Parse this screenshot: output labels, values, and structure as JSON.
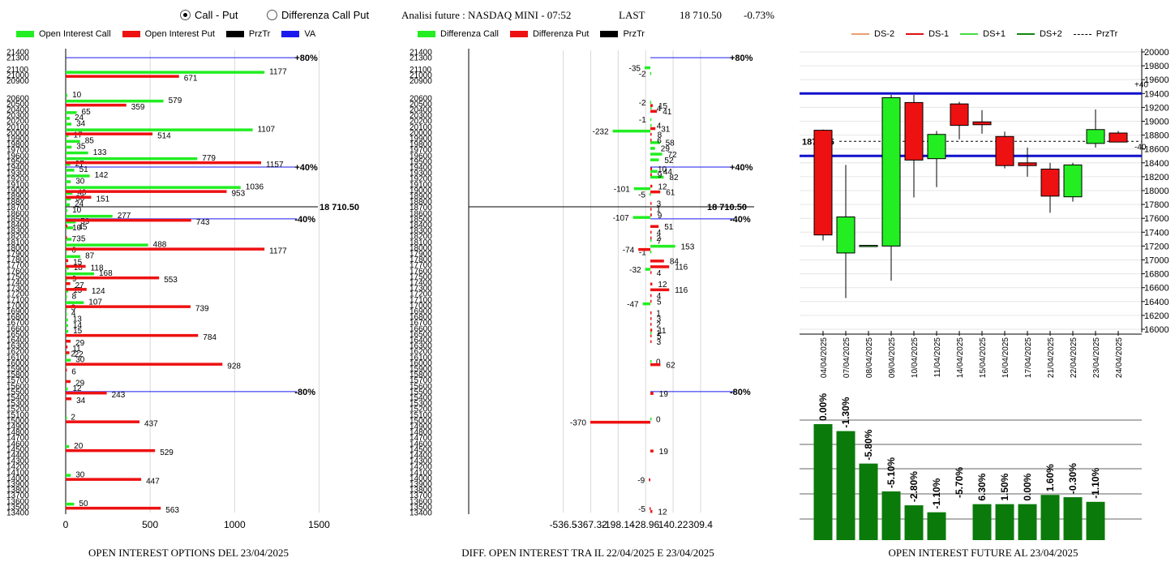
{
  "toolbar": {
    "radio_call_put": "Call - Put",
    "radio_diff": "Differenza Call Put",
    "title": "Analisi future : NASDAQ MINI - 07:52",
    "last_label": "LAST",
    "last_value": "18 710.50",
    "change": "-0.73%"
  },
  "legends": {
    "panel1": [
      {
        "label": "Open Interest Call",
        "color": "#22ee22"
      },
      {
        "label": "Open Interest Put",
        "color": "#ee1111"
      },
      {
        "label": "PrzTr",
        "color": "#000000"
      },
      {
        "label": "VA",
        "color": "#1a1aee"
      }
    ],
    "panel2": [
      {
        "label": "Differenza Call",
        "color": "#22ee22"
      },
      {
        "label": "Differenza Put",
        "color": "#ee1111"
      },
      {
        "label": "PrzTr",
        "color": "#000000"
      }
    ],
    "panel3": [
      {
        "label": "DS-2",
        "color": "#e8a070"
      },
      {
        "label": "DS-1",
        "color": "#dd1111"
      },
      {
        "label": "DS+1",
        "color": "#44dd44"
      },
      {
        "label": "DS+2",
        "color": "#118811"
      },
      {
        "label": "PrzTr",
        "color": "#000000"
      }
    ]
  },
  "captions": {
    "panel1": "OPEN INTEREST OPTIONS DEL 23/04/2025",
    "panel2": "DIFF. OPEN INTEREST TRA IL 22/04/2025 E 23/04/2025",
    "panel3": "OPEN INTEREST FUTURE AL 23/04/2025"
  },
  "chart_data": [
    {
      "type": "bar",
      "orientation": "horizontal",
      "strike_ticks": [
        21400,
        21300,
        21100,
        21000,
        20900,
        20600,
        20500,
        20400,
        20300,
        20200,
        20100,
        20000,
        19900,
        19800,
        19700,
        19600,
        19500,
        19400,
        19300,
        19200,
        19100,
        19000,
        18900,
        18800,
        18700,
        18600,
        18500,
        18400,
        18300,
        18200,
        18100,
        18000,
        17900,
        17800,
        17700,
        17600,
        17500,
        17400,
        17300,
        17200,
        17100,
        17000,
        16900,
        16800,
        16700,
        16600,
        16500,
        16400,
        16300,
        16200,
        16100,
        16000,
        15900,
        15800,
        15700,
        15600,
        15500,
        15400,
        15300,
        15200,
        15100,
        15000,
        14900,
        14800,
        14700,
        14600,
        14500,
        14400,
        14300,
        14200,
        14100,
        14000,
        13900,
        13800,
        13700,
        13600,
        13500,
        13400
      ],
      "x_ticks": [
        "0",
        "500",
        "1000",
        "1500"
      ],
      "xlim": [
        0,
        1500
      ],
      "call": [
        {
          "strike": 21000,
          "value": 1177
        },
        {
          "strike": 20600,
          "value": 10
        },
        {
          "strike": 20500,
          "value": 579
        },
        {
          "strike": 20300,
          "value": 65
        },
        {
          "strike": 20200,
          "value": 24
        },
        {
          "strike": 20100,
          "value": 34
        },
        {
          "strike": 20000,
          "value": 1107
        },
        {
          "strike": 19900,
          "value": 17
        },
        {
          "strike": 19800,
          "value": 85
        },
        {
          "strike": 19700,
          "value": 35
        },
        {
          "strike": 19600,
          "value": 133
        },
        {
          "strike": 19500,
          "value": 779
        },
        {
          "strike": 19400,
          "value": 27
        },
        {
          "strike": 19300,
          "value": 51
        },
        {
          "strike": 19200,
          "value": 142
        },
        {
          "strike": 19100,
          "value": 30
        },
        {
          "strike": 19000,
          "value": 1036
        },
        {
          "strike": 18900,
          "value": 40
        },
        {
          "strike": 18800,
          "value": 30
        },
        {
          "strike": 18700,
          "value": 24
        },
        {
          "strike": 18600,
          "value": 10
        },
        {
          "strike": 18500,
          "value": 277
        },
        {
          "strike": 18400,
          "value": 59
        },
        {
          "strike": 18300,
          "value": 45
        },
        {
          "strike": 18100,
          "value": 35
        },
        {
          "strike": 18000,
          "value": 488
        },
        {
          "strike": 17900,
          "value": 6
        },
        {
          "strike": 17800,
          "value": 87
        },
        {
          "strike": 17600,
          "value": 18
        },
        {
          "strike": 17500,
          "value": 168
        },
        {
          "strike": 17400,
          "value": 9
        },
        {
          "strike": 17200,
          "value": 15
        },
        {
          "strike": 17100,
          "value": 8
        },
        {
          "strike": 17000,
          "value": 107
        },
        {
          "strike": 16900,
          "value": 3
        },
        {
          "strike": 16800,
          "value": 4
        },
        {
          "strike": 16700,
          "value": 13
        },
        {
          "strike": 16600,
          "value": 14
        },
        {
          "strike": 16500,
          "value": 15
        },
        {
          "strike": 16100,
          "value": 2
        },
        {
          "strike": 16000,
          "value": 30
        },
        {
          "strike": 15500,
          "value": 12
        },
        {
          "strike": 15000,
          "value": 2
        },
        {
          "strike": 14500,
          "value": 20
        },
        {
          "strike": 14000,
          "value": 30
        },
        {
          "strike": 13500,
          "value": 50
        }
      ],
      "put": [
        {
          "strike": 21000,
          "value": 671
        },
        {
          "strike": 20500,
          "value": 359
        },
        {
          "strike": 20000,
          "value": 514
        },
        {
          "strike": 19500,
          "value": 1157
        },
        {
          "strike": 19000,
          "value": 953
        },
        {
          "strike": 18900,
          "value": 151
        },
        {
          "strike": 18500,
          "value": 743
        },
        {
          "strike": 18400,
          "value": 10
        },
        {
          "strike": 18200,
          "value": 7
        },
        {
          "strike": 18000,
          "value": 1177
        },
        {
          "strike": 17800,
          "value": 15
        },
        {
          "strike": 17700,
          "value": 118
        },
        {
          "strike": 17500,
          "value": 553
        },
        {
          "strike": 17400,
          "value": 27
        },
        {
          "strike": 17300,
          "value": 124
        },
        {
          "strike": 17000,
          "value": 739
        },
        {
          "strike": 16500,
          "value": 784
        },
        {
          "strike": 16400,
          "value": 29
        },
        {
          "strike": 16300,
          "value": 11
        },
        {
          "strike": 16200,
          "value": 22
        },
        {
          "strike": 16000,
          "value": 928
        },
        {
          "strike": 15900,
          "value": 6
        },
        {
          "strike": 15700,
          "value": 29
        },
        {
          "strike": 15500,
          "value": 243
        },
        {
          "strike": 15400,
          "value": 34
        },
        {
          "strike": 15000,
          "value": 437
        },
        {
          "strike": 14500,
          "value": 529
        },
        {
          "strike": 14000,
          "value": 447
        },
        {
          "strike": 13500,
          "value": 563
        }
      ],
      "levels": [
        {
          "strike": 21300,
          "label": "+80%",
          "value": 1370
        },
        {
          "strike": 19400,
          "label": "+40%",
          "value": 1370
        },
        {
          "strike": 18500,
          "label": "-40%",
          "value": 1370
        },
        {
          "strike": 15500,
          "label": "-80%",
          "value": 1370
        }
      ],
      "price_line": {
        "strike": 18710.5,
        "label": "18 710.50"
      }
    },
    {
      "type": "bar",
      "orientation": "horizontal",
      "x_ticks": [
        "-536.5",
        "-367.32",
        "-198.14",
        "-28.96",
        "140.22",
        "309.4"
      ],
      "xlim": [
        -536.5,
        309.4
      ],
      "call": [
        {
          "strike": 21100,
          "value": -35
        },
        {
          "strike": 21000,
          "value": -2
        },
        {
          "strike": 20500,
          "value": -2
        },
        {
          "strike": 20400,
          "value": 4
        },
        {
          "strike": 20200,
          "value": -1
        },
        {
          "strike": 20100,
          "value": 4
        },
        {
          "strike": 20000,
          "value": -232
        },
        {
          "strike": 19800,
          "value": 58
        },
        {
          "strike": 19700,
          "value": 29
        },
        {
          "strike": 19600,
          "value": 72
        },
        {
          "strike": 19500,
          "value": 52
        },
        {
          "strike": 19300,
          "value": 44
        },
        {
          "strike": 19200,
          "value": 82
        },
        {
          "strike": 19000,
          "value": -101
        },
        {
          "strike": 18900,
          "value": -5
        },
        {
          "strike": 18500,
          "value": -107
        },
        {
          "strike": 18100,
          "value": 7
        },
        {
          "strike": 18000,
          "value": 153
        },
        {
          "strike": 17900,
          "value": -1
        },
        {
          "strike": 17600,
          "value": -32
        },
        {
          "strike": 17000,
          "value": -47
        },
        {
          "strike": 16500,
          "value": 1
        },
        {
          "strike": 16000,
          "value": 0
        },
        {
          "strike": 15000,
          "value": 0
        }
      ],
      "put": [
        {
          "strike": 20500,
          "value": 15
        },
        {
          "strike": 20400,
          "value": 41
        },
        {
          "strike": 20100,
          "value": 31
        },
        {
          "strike": 20000,
          "value": 8
        },
        {
          "strike": 19900,
          "value": 6
        },
        {
          "strike": 19400,
          "value": 10
        },
        {
          "strike": 19300,
          "value": 9
        },
        {
          "strike": 19100,
          "value": 12
        },
        {
          "strike": 19000,
          "value": 61
        },
        {
          "strike": 18800,
          "value": 3
        },
        {
          "strike": 18700,
          "value": 1
        },
        {
          "strike": 18600,
          "value": 9
        },
        {
          "strike": 18400,
          "value": 51
        },
        {
          "strike": 18300,
          "value": 4
        },
        {
          "strike": 18200,
          "value": 2
        },
        {
          "strike": 18000,
          "value": -74
        },
        {
          "strike": 17800,
          "value": 84
        },
        {
          "strike": 17700,
          "value": 116
        },
        {
          "strike": 17600,
          "value": 4
        },
        {
          "strike": 17400,
          "value": 12
        },
        {
          "strike": 17300,
          "value": 116
        },
        {
          "strike": 17200,
          "value": 4
        },
        {
          "strike": 17100,
          "value": 5
        },
        {
          "strike": 16900,
          "value": 1
        },
        {
          "strike": 16800,
          "value": 3
        },
        {
          "strike": 16700,
          "value": 2
        },
        {
          "strike": 16600,
          "value": 11
        },
        {
          "strike": 16500,
          "value": 5
        },
        {
          "strike": 16400,
          "value": 3
        },
        {
          "strike": 16000,
          "value": 62
        },
        {
          "strike": 15500,
          "value": 19
        },
        {
          "strike": 15000,
          "value": -370
        },
        {
          "strike": 14500,
          "value": 19
        },
        {
          "strike": 14000,
          "value": -9
        },
        {
          "strike": 13500,
          "value": -5
        },
        {
          "strike": 13450,
          "value": 12
        }
      ],
      "levels": [
        {
          "strike": 21300,
          "label": "+80%"
        },
        {
          "strike": 19400,
          "label": "+40%"
        },
        {
          "strike": 18500,
          "label": "-40%"
        },
        {
          "strike": 15500,
          "label": "-80%"
        }
      ],
      "price_line": {
        "strike": 18710.5,
        "label": "18 710.50"
      }
    },
    {
      "type": "candlestick",
      "ylim": [
        16000,
        20000
      ],
      "y_ticks": [
        20000,
        19800,
        19600,
        19400,
        19200,
        19000,
        18800,
        18600,
        18400,
        18200,
        18000,
        17800,
        17600,
        17400,
        17200,
        17000,
        16800,
        16600,
        16400,
        16200,
        16000
      ],
      "dates": [
        "04/04/2025",
        "07/04/2025",
        "08/04/2025",
        "09/04/2025",
        "10/04/2025",
        "11/04/2025",
        "14/04/2025",
        "15/04/2025",
        "16/04/2025",
        "17/04/2025",
        "21/04/2025",
        "22/04/2025",
        "23/04/2025",
        "24/04/2025"
      ],
      "candles": [
        {
          "open": 18870,
          "close": 17360,
          "high": 18880,
          "low": 17280
        },
        {
          "open": 17100,
          "close": 17620,
          "high": 18370,
          "low": 16450
        },
        {
          "open": 17210,
          "close": 17210,
          "high": 17210,
          "low": 17210
        },
        {
          "open": 17200,
          "close": 19340,
          "high": 19380,
          "low": 16700
        },
        {
          "open": 19270,
          "close": 18440,
          "high": 19380,
          "low": 17900
        },
        {
          "open": 18460,
          "close": 18810,
          "high": 18860,
          "low": 18050
        },
        {
          "open": 19250,
          "close": 18940,
          "high": 19280,
          "low": 18740
        },
        {
          "open": 18990,
          "close": 18950,
          "high": 19160,
          "low": 18820
        },
        {
          "open": 18780,
          "close": 18360,
          "high": 18850,
          "low": 18320
        },
        {
          "open": 18400,
          "close": 18360,
          "high": 18620,
          "low": 18200
        },
        {
          "open": 18310,
          "close": 17920,
          "high": 18400,
          "low": 17680
        },
        {
          "open": 17910,
          "close": 18370,
          "high": 18400,
          "low": 17840
        },
        {
          "open": 18680,
          "close": 18880,
          "high": 19170,
          "low": 18620
        },
        {
          "open": 18830,
          "close": 18700,
          "high": 18860,
          "low": 18700
        }
      ],
      "bands": [
        {
          "value": 19400,
          "label": "+40"
        },
        {
          "value": 18500,
          "label": "-40"
        }
      ],
      "price_line": {
        "value": 18710.5,
        "label": "18710.5"
      }
    },
    {
      "type": "bar",
      "values": [
        0.0,
        -1.3,
        -5.8,
        -5.1,
        -2.8,
        -1.1,
        -5.7,
        6.3,
        1.5,
        0.0,
        1.6,
        -0.3,
        -1.1
      ],
      "labels": [
        "0.00%",
        "-1.30%",
        "-5.80%",
        "-5.10%",
        "-2.80%",
        "-1.10%",
        "-5.70%",
        "6.30%",
        "1.50%",
        "0.00%",
        "1.60%",
        "-0.30%",
        "-1.10%"
      ],
      "heights": [
        100,
        94,
        66,
        42,
        30,
        24,
        0,
        31,
        31,
        31,
        39,
        37,
        33
      ],
      "color": "#0a7a0a"
    }
  ]
}
